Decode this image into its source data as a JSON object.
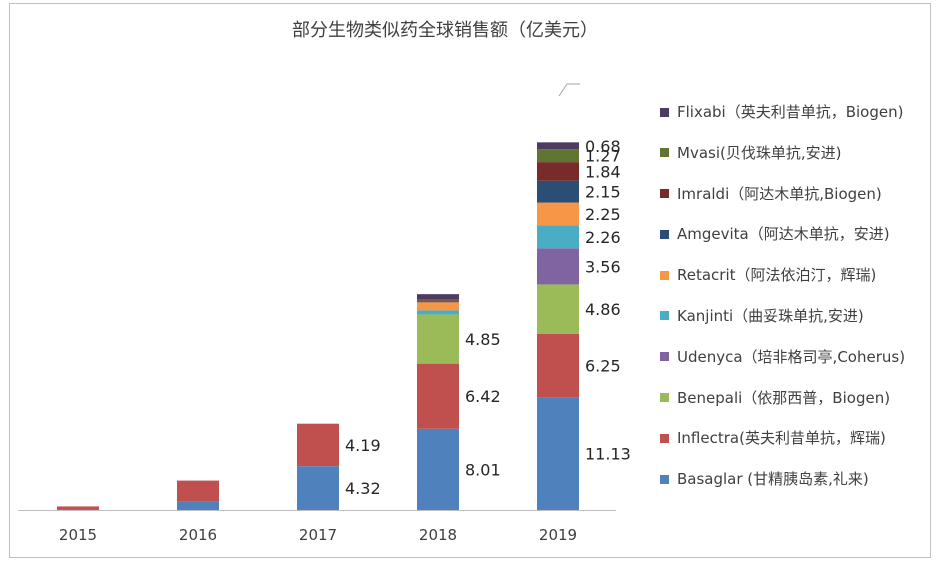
{
  "chart_data": {
    "type": "bar",
    "stacked": true,
    "title": "部分生物类似药全球销售额（亿美元）",
    "categories": [
      "2015",
      "2016",
      "2017",
      "2018",
      "2019"
    ],
    "ylim": [
      0,
      42
    ],
    "grid": false,
    "legend_position": "right",
    "series": [
      {
        "name": "Basaglar (甘精胰岛素,礼来)",
        "color": "#4f81bd",
        "values": [
          0.1,
          0.85,
          4.32,
          8.01,
          11.13
        ],
        "labels": [
          "",
          "",
          "4.32",
          "8.01",
          "11.13"
        ]
      },
      {
        "name": "Inflectra(英夫利昔单抗，辉瑞)",
        "color": "#c0504d",
        "values": [
          0.25,
          2.05,
          4.19,
          6.42,
          6.25
        ],
        "labels": [
          "",
          "",
          "4.19",
          "6.42",
          "6.25"
        ]
      },
      {
        "name": "Benepali（依那西普，Biogen)",
        "color": "#9bbb59",
        "values": [
          0,
          0,
          0,
          4.85,
          4.86
        ],
        "labels": [
          "",
          "",
          "",
          "4.85",
          "4.86"
        ]
      },
      {
        "name": "Udenyca（培非格司亭,Coherus)",
        "color": "#8064a2",
        "values": [
          0,
          0,
          0,
          0,
          3.56
        ],
        "labels": [
          "",
          "",
          "",
          "",
          "3.56"
        ]
      },
      {
        "name": "Kanjinti（曲妥珠单抗,安进)",
        "color": "#4bacc6",
        "values": [
          0,
          0,
          0,
          0.4,
          2.26
        ],
        "labels": [
          "",
          "",
          "",
          "",
          "2.26"
        ]
      },
      {
        "name": "Retacrit（阿法依泊汀，辉瑞)",
        "color": "#f79646",
        "values": [
          0,
          0,
          0,
          0.8,
          2.25
        ],
        "labels": [
          "",
          "",
          "",
          "",
          "2.25"
        ]
      },
      {
        "name": "Amgevita（阿达木单抗，安进)",
        "color": "#2c4d75",
        "values": [
          0,
          0,
          0,
          0.1,
          2.15
        ],
        "labels": [
          "",
          "",
          "",
          "",
          "2.15"
        ]
      },
      {
        "name": "Imraldi（阿达木单抗,Biogen)",
        "color": "#772c2a",
        "values": [
          0,
          0,
          0,
          0.1,
          1.84
        ],
        "labels": [
          "",
          "",
          "",
          "",
          "1.84"
        ]
      },
      {
        "name": "Mvasi(贝伐珠单抗,安进)",
        "color": "#5f7530",
        "values": [
          0,
          0,
          0,
          0.05,
          1.27
        ],
        "labels": [
          "",
          "",
          "",
          "",
          "1.27"
        ]
      },
      {
        "name": "Flixabi（英夫利昔单抗，Biogen)",
        "color": "#4d3b62",
        "values": [
          0,
          0,
          0,
          0.55,
          0.68
        ],
        "labels": [
          "",
          "",
          "",
          "",
          "0.68"
        ]
      }
    ],
    "legend_order": [
      "Flixabi（英夫利昔单抗，Biogen)",
      "Mvasi(贝伐珠单抗,安进)",
      "Imraldi（阿达木单抗,Biogen)",
      "Amgevita（阿达木单抗，安进)",
      "Retacrit（阿法依泊汀，辉瑞)",
      "Kanjinti（曲妥珠单抗,安进)",
      "Udenyca（培非格司亭,Coherus)",
      "Benepali（依那西普，Biogen)",
      "Inflectra(英夫利昔单抗，辉瑞)",
      "Basaglar (甘精胰岛素,礼来)"
    ]
  }
}
